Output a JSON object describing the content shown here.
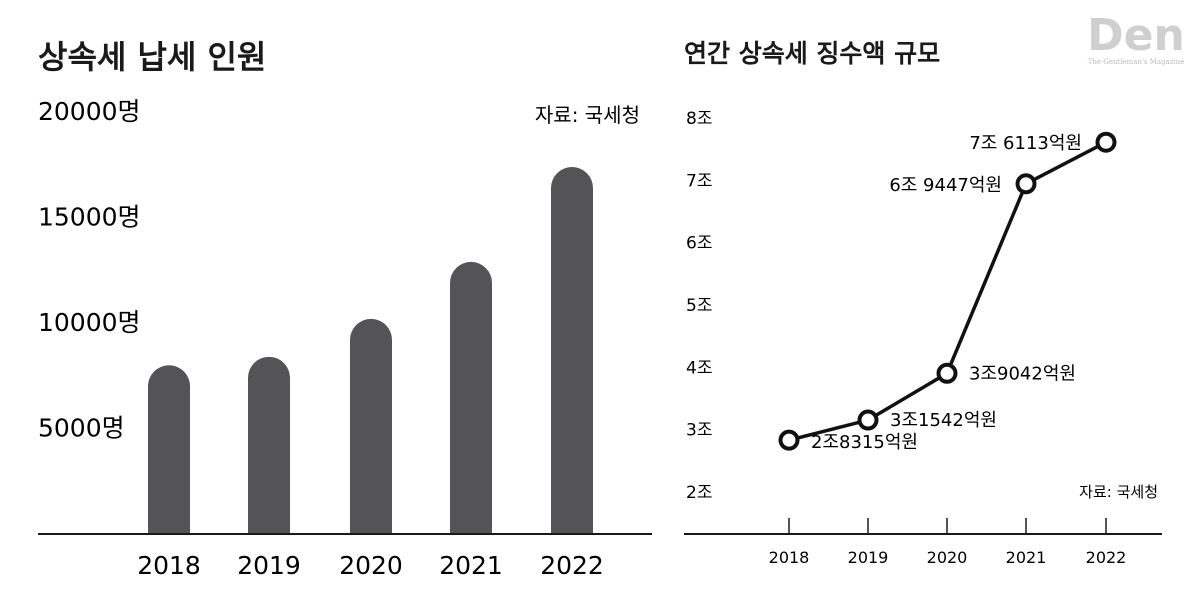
{
  "logo": {
    "text": "Den",
    "subtitle": "The Gentleman's Magazine"
  },
  "chart_data": [
    {
      "type": "bar",
      "title": "상속세 납세 인원",
      "source": "자료: 국세청",
      "categories": [
        "2018",
        "2019",
        "2020",
        "2021",
        "2022"
      ],
      "values": [
        8000,
        8400,
        10200,
        12900,
        17400
      ],
      "y_ticks": [
        5000,
        10000,
        15000,
        20000
      ],
      "y_tick_labels": [
        "5000명",
        "10000명",
        "15000명",
        "20000명"
      ],
      "ylim": [
        0,
        22000
      ],
      "bar_color": "#545456",
      "grid": false
    },
    {
      "type": "line",
      "title": "연간 상속세 징수액 규모",
      "source": "자료: 국세청",
      "x": [
        "2018",
        "2019",
        "2020",
        "2021",
        "2022"
      ],
      "values": [
        2.8315,
        3.1542,
        3.9042,
        6.9447,
        7.6113
      ],
      "point_labels": [
        "2조8315억원",
        "3조1542억원",
        "3조9042억원",
        "6조 9447억원",
        "7조 6113억원"
      ],
      "y_ticks": [
        2,
        3,
        4,
        5,
        6,
        7,
        8
      ],
      "y_tick_labels": [
        "2조",
        "3조",
        "4조",
        "5조",
        "6조",
        "7조",
        "8조"
      ],
      "ylim": [
        2,
        8
      ],
      "line_color": "#111111",
      "grid": false
    }
  ]
}
